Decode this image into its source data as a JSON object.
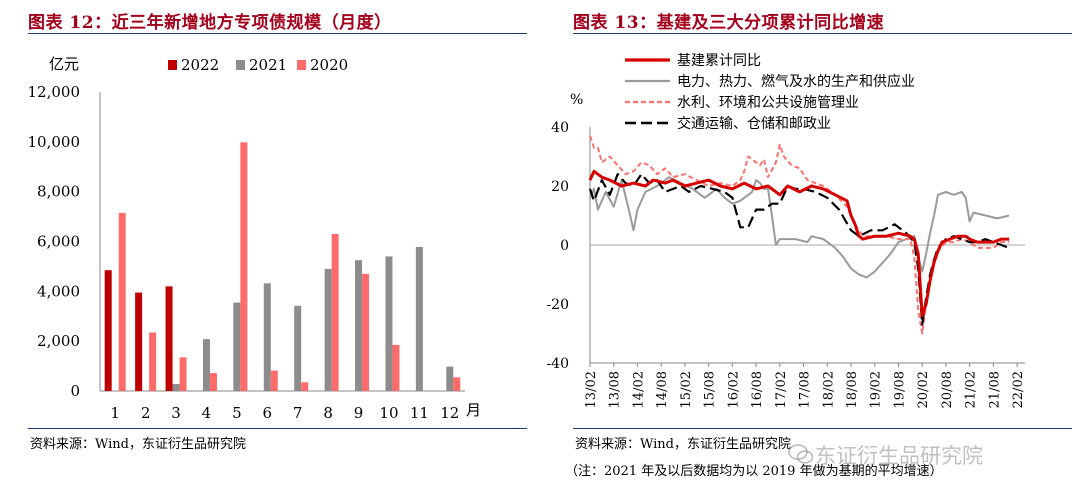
{
  "left": {
    "title": "图表 12：近三年新增地方专项债规模（月度）",
    "source": "资料来源：Wind，东证衍生品研究院"
  },
  "right": {
    "title": "图表 13：基建及三大分项累计同比增速",
    "source": "资料来源：Wind，东证衍生品研究院",
    "note": "（注：2021 年及以后数据均为以 2019 年做为基期的平均增速）"
  },
  "watermark": "东证衍生品研究院",
  "colors": {
    "title": "#a3001b",
    "rule": "#1f3b73",
    "s2022": "#c00000",
    "s2021": "#8c8c8c",
    "s2020": "#ff6b6b",
    "infra": "#d60000",
    "power": "#9a9a9a",
    "water": "#ff7070",
    "transport": "#000000"
  },
  "chart_data": [
    {
      "type": "bar",
      "ylabel": "亿元",
      "xlabel": "月",
      "ylim": [
        0,
        12000
      ],
      "yticks": [
        "0",
        "2,000",
        "4,000",
        "6,000",
        "8,000",
        "10,000",
        "12,000"
      ],
      "categories": [
        "1",
        "2",
        "3",
        "4",
        "5",
        "6",
        "7",
        "8",
        "9",
        "10",
        "11",
        "12"
      ],
      "series": [
        {
          "name": "2022",
          "values": [
            4850,
            3950,
            4200,
            null,
            null,
            null,
            null,
            null,
            null,
            null,
            null,
            null
          ]
        },
        {
          "name": "2021",
          "values": [
            null,
            null,
            280,
            2080,
            3550,
            4320,
            3420,
            4900,
            5250,
            5400,
            5780,
            980
          ]
        },
        {
          "name": "2020",
          "values": [
            7150,
            2350,
            1350,
            720,
            9980,
            820,
            350,
            6300,
            4700,
            1850,
            null,
            550
          ]
        }
      ]
    },
    {
      "type": "line",
      "ylabel": "%",
      "ylim": [
        -40,
        40
      ],
      "yticks": [
        "-40",
        "-20",
        "0",
        "20",
        "40"
      ],
      "x_range": [
        "2013-02",
        "2022-04"
      ],
      "xticks": [
        "13/02",
        "13/08",
        "14/02",
        "14/08",
        "15/02",
        "15/08",
        "16/02",
        "16/08",
        "17/02",
        "17/08",
        "18/02",
        "18/08",
        "19/02",
        "19/08",
        "20/02",
        "20/08",
        "21/02",
        "21/08",
        "22/02"
      ],
      "series": [
        {
          "name": "基建累计同比",
          "style": "solid-thick",
          "points": [
            [
              0,
              22
            ],
            [
              1,
              25
            ],
            [
              3,
              23
            ],
            [
              5,
              22
            ],
            [
              8,
              20
            ],
            [
              11,
              21
            ],
            [
              14,
              20
            ],
            [
              16,
              22
            ],
            [
              19,
              21
            ],
            [
              21,
              22
            ],
            [
              24,
              20
            ],
            [
              27,
              21
            ],
            [
              30,
              22
            ],
            [
              33,
              20
            ],
            [
              36,
              19
            ],
            [
              39,
              21
            ],
            [
              42,
              19
            ],
            [
              45,
              20
            ],
            [
              48,
              17
            ],
            [
              50,
              20
            ],
            [
              53,
              18
            ],
            [
              56,
              20
            ],
            [
              59,
              19
            ],
            [
              62,
              17
            ],
            [
              65,
              15
            ],
            [
              66,
              10
            ],
            [
              67,
              7
            ],
            [
              68,
              3
            ],
            [
              69,
              2
            ],
            [
              72,
              3
            ],
            [
              75,
              3
            ],
            [
              78,
              4
            ],
            [
              81,
              3
            ],
            [
              82,
              2
            ],
            [
              83,
              -3
            ],
            [
              84,
              -24
            ],
            [
              85,
              -20
            ],
            [
              86,
              -12
            ],
            [
              87,
              -6
            ],
            [
              88,
              -2
            ],
            [
              89,
              1
            ],
            [
              91,
              2
            ],
            [
              93,
              3
            ],
            [
              95,
              3
            ],
            [
              96,
              2
            ],
            [
              98,
              1
            ],
            [
              100,
              1
            ],
            [
              102,
              1
            ],
            [
              104,
              2
            ],
            [
              106,
              2
            ]
          ]
        },
        {
          "name": "电力、热力、燃气及水的生产和供应业",
          "style": "solid-grey",
          "points": [
            [
              0,
              16
            ],
            [
              1,
              19
            ],
            [
              2,
              12
            ],
            [
              4,
              18
            ],
            [
              6,
              13
            ],
            [
              8,
              22
            ],
            [
              10,
              11
            ],
            [
              11,
              5
            ],
            [
              12,
              12
            ],
            [
              14,
              18
            ],
            [
              17,
              20
            ],
            [
              20,
              23
            ],
            [
              23,
              21
            ],
            [
              26,
              19
            ],
            [
              29,
              16
            ],
            [
              32,
              19
            ],
            [
              34,
              16
            ],
            [
              36,
              14
            ],
            [
              38,
              15
            ],
            [
              41,
              18
            ],
            [
              42,
              22
            ],
            [
              43,
              21
            ],
            [
              44,
              19
            ],
            [
              45,
              19
            ],
            [
              46,
              10
            ],
            [
              47,
              0
            ],
            [
              48,
              2
            ],
            [
              52,
              2
            ],
            [
              55,
              1
            ],
            [
              56,
              3
            ],
            [
              59,
              2
            ],
            [
              62,
              -1
            ],
            [
              64,
              -4
            ],
            [
              66,
              -8
            ],
            [
              68,
              -10
            ],
            [
              70,
              -11
            ],
            [
              72,
              -9
            ],
            [
              74,
              -6
            ],
            [
              76,
              -3
            ],
            [
              78,
              1
            ],
            [
              80,
              2
            ],
            [
              82,
              3
            ],
            [
              83,
              -4
            ],
            [
              84,
              -9
            ],
            [
              85,
              -3
            ],
            [
              86,
              4
            ],
            [
              87,
              10
            ],
            [
              88,
              17
            ],
            [
              90,
              18
            ],
            [
              92,
              17
            ],
            [
              94,
              18
            ],
            [
              95,
              16
            ],
            [
              96,
              8
            ],
            [
              97,
              11
            ],
            [
              100,
              10
            ],
            [
              103,
              9
            ],
            [
              106,
              10
            ]
          ]
        },
        {
          "name": "水利、环境和公共设施管理业",
          "style": "dashed-pink",
          "points": [
            [
              0,
              37
            ],
            [
              1,
              33
            ],
            [
              2,
              33
            ],
            [
              3,
              28
            ],
            [
              5,
              30
            ],
            [
              7,
              27
            ],
            [
              9,
              24
            ],
            [
              11,
              25
            ],
            [
              13,
              28
            ],
            [
              15,
              27
            ],
            [
              17,
              24
            ],
            [
              19,
              26
            ],
            [
              21,
              23
            ],
            [
              24,
              24
            ],
            [
              27,
              22
            ],
            [
              30,
              20
            ],
            [
              33,
              21
            ],
            [
              36,
              20
            ],
            [
              38,
              22
            ],
            [
              39,
              25
            ],
            [
              40,
              30
            ],
            [
              42,
              28
            ],
            [
              43,
              27
            ],
            [
              44,
              29
            ],
            [
              45,
              23
            ],
            [
              47,
              28
            ],
            [
              48,
              34
            ],
            [
              49,
              30
            ],
            [
              51,
              27
            ],
            [
              53,
              26
            ],
            [
              55,
              22
            ],
            [
              57,
              21
            ],
            [
              59,
              20
            ],
            [
              62,
              17
            ],
            [
              65,
              13
            ],
            [
              67,
              7
            ],
            [
              69,
              3
            ],
            [
              72,
              3
            ],
            [
              75,
              3
            ],
            [
              78,
              2
            ],
            [
              81,
              2
            ],
            [
              82,
              -4
            ],
            [
              83,
              -22
            ],
            [
              84,
              -30
            ],
            [
              85,
              -20
            ],
            [
              86,
              -12
            ],
            [
              87,
              -5
            ],
            [
              88,
              -2
            ],
            [
              90,
              1
            ],
            [
              92,
              1
            ],
            [
              94,
              2
            ],
            [
              96,
              1
            ],
            [
              98,
              -1
            ],
            [
              100,
              -1
            ],
            [
              102,
              -1
            ],
            [
              104,
              1
            ],
            [
              106,
              1
            ]
          ]
        },
        {
          "name": "交通运输、仓储和邮政业",
          "style": "dashed-black",
          "points": [
            [
              0,
              19
            ],
            [
              1,
              15
            ],
            [
              3,
              22
            ],
            [
              5,
              17
            ],
            [
              7,
              24
            ],
            [
              9,
              21
            ],
            [
              11,
              20
            ],
            [
              13,
              24
            ],
            [
              15,
              21
            ],
            [
              17,
              22
            ],
            [
              19,
              18
            ],
            [
              21,
              19
            ],
            [
              23,
              20
            ],
            [
              25,
              18
            ],
            [
              28,
              20
            ],
            [
              31,
              19
            ],
            [
              34,
              18
            ],
            [
              36,
              16
            ],
            [
              38,
              6
            ],
            [
              40,
              6
            ],
            [
              42,
              12
            ],
            [
              44,
              12
            ],
            [
              46,
              14
            ],
            [
              48,
              14
            ],
            [
              50,
              20
            ],
            [
              52,
              19
            ],
            [
              54,
              19
            ],
            [
              57,
              18
            ],
            [
              60,
              16
            ],
            [
              63,
              12
            ],
            [
              66,
              5
            ],
            [
              68,
              3
            ],
            [
              71,
              5
            ],
            [
              74,
              5
            ],
            [
              77,
              7
            ],
            [
              80,
              4
            ],
            [
              82,
              1
            ],
            [
              83,
              -8
            ],
            [
              84,
              -27
            ],
            [
              85,
              -18
            ],
            [
              86,
              -10
            ],
            [
              87,
              -5
            ],
            [
              88,
              -1
            ],
            [
              90,
              2
            ],
            [
              92,
              3
            ],
            [
              94,
              2
            ],
            [
              96,
              1
            ],
            [
              98,
              1
            ],
            [
              100,
              2
            ],
            [
              102,
              1
            ],
            [
              104,
              0
            ],
            [
              106,
              -1
            ]
          ]
        }
      ]
    }
  ]
}
